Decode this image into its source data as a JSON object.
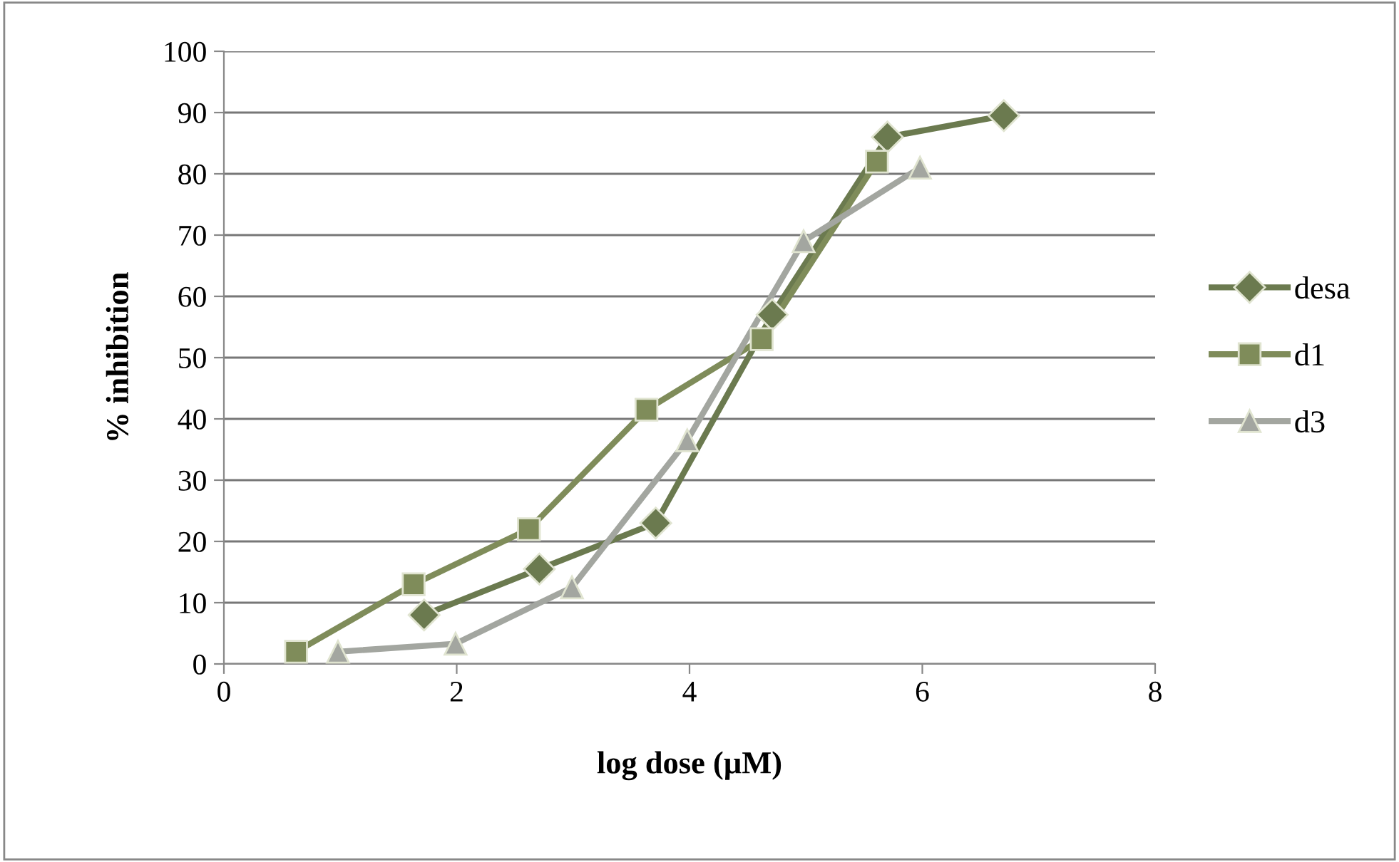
{
  "chart_data": {
    "type": "line",
    "xlabel": "log dose (µM)",
    "ylabel": "% inhibition",
    "xlim": [
      0,
      8
    ],
    "xticks": [
      0,
      2,
      4,
      6,
      8
    ],
    "ylim": [
      0,
      100
    ],
    "yticks": [
      0,
      10,
      20,
      30,
      40,
      50,
      60,
      70,
      80,
      90,
      100
    ],
    "grid": "y",
    "legend": "right",
    "line_style": "solid",
    "series": [
      {
        "name": "desa",
        "color": "#6b7a4f",
        "marker": "diamond",
        "x": [
          1.72,
          2.71,
          3.71,
          4.71,
          5.7,
          6.7
        ],
        "values": [
          8,
          15.5,
          23,
          57,
          86,
          89.5
        ]
      },
      {
        "name": "d1",
        "color": "#7f8c5a",
        "marker": "square",
        "x": [
          0.62,
          1.63,
          2.62,
          3.63,
          4.62,
          5.61
        ],
        "values": [
          2,
          13,
          22,
          41.5,
          53,
          82
        ]
      },
      {
        "name": "d3",
        "color": "#a3a6a0",
        "marker": "triangle",
        "x": [
          0.98,
          1.99,
          2.99,
          3.98,
          4.98,
          5.98
        ],
        "values": [
          2,
          3.3,
          12.5,
          36.5,
          69,
          81
        ]
      }
    ]
  }
}
